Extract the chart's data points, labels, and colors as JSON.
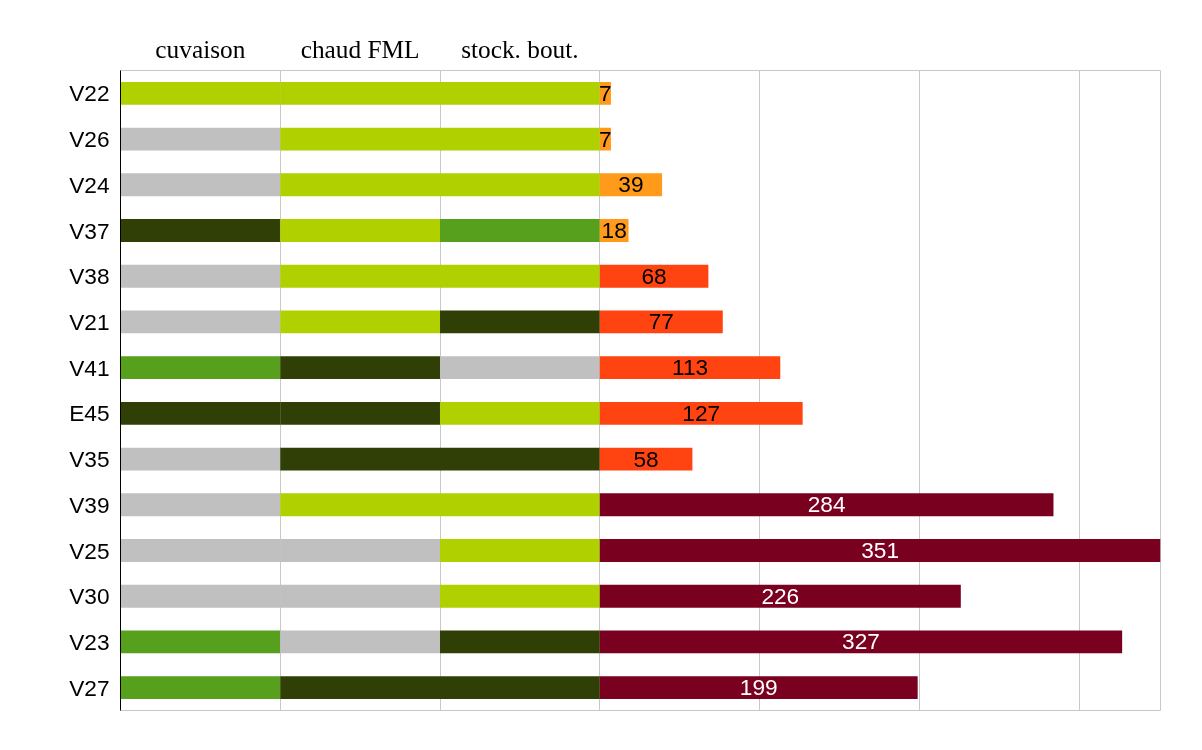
{
  "chart_data": {
    "type": "bar",
    "orientation": "horizontal",
    "stacked": true,
    "categories": [
      "V22",
      "V26",
      "V24",
      "V37",
      "V38",
      "V21",
      "V41",
      "E45",
      "V35",
      "V39",
      "V25",
      "V30",
      "V23",
      "V27"
    ],
    "series": [
      {
        "name": "cuvaison",
        "values": [
          100,
          100,
          100,
          100,
          100,
          100,
          100,
          100,
          100,
          100,
          100,
          100,
          100,
          100
        ],
        "colors": [
          "#b0d000",
          "#c0c0c0",
          "#c0c0c0",
          "#2f3f06",
          "#c0c0c0",
          "#c0c0c0",
          "#56a01e",
          "#2f3f06",
          "#c0c0c0",
          "#c0c0c0",
          "#c0c0c0",
          "#c0c0c0",
          "#56a01e",
          "#56a01e"
        ]
      },
      {
        "name": "chaud FML",
        "values": [
          100,
          100,
          100,
          100,
          100,
          100,
          100,
          100,
          100,
          100,
          100,
          100,
          100,
          100
        ],
        "colors": [
          "#b0d000",
          "#b0d000",
          "#b0d000",
          "#b0d000",
          "#b0d000",
          "#b0d000",
          "#2f3f06",
          "#2f3f06",
          "#2f3f06",
          "#b0d000",
          "#c0c0c0",
          "#c0c0c0",
          "#c0c0c0",
          "#2f3f06"
        ]
      },
      {
        "name": "stock. bout.",
        "values": [
          100,
          100,
          100,
          100,
          100,
          100,
          100,
          100,
          100,
          100,
          100,
          100,
          100,
          100
        ],
        "colors": [
          "#b0d000",
          "#b0d000",
          "#b0d000",
          "#56a01e",
          "#b0d000",
          "#2f3f06",
          "#c0c0c0",
          "#b0d000",
          "#2f3f06",
          "#b0d000",
          "#b0d000",
          "#b0d000",
          "#2f3f06",
          "#2f3f06"
        ]
      },
      {
        "values": [
          7,
          7,
          39,
          18,
          68,
          77,
          113,
          127,
          58,
          284,
          351,
          226,
          327,
          199
        ],
        "colors": [
          "#ff9a1a",
          "#ff9a1a",
          "#ff9a1a",
          "#ff9a1a",
          "#ff4411",
          "#ff4411",
          "#ff4411",
          "#ff4411",
          "#ff4411",
          "#7a0020",
          "#7a0020",
          "#7a0020",
          "#7a0020",
          "#7a0020"
        ],
        "value_labels": [
          "7",
          "7",
          "39",
          "18",
          "68",
          "77",
          "113",
          "127",
          "58",
          "284",
          "351",
          "226",
          "327",
          "199"
        ]
      }
    ],
    "xlim": [
      0,
      651
    ],
    "xticks": [
      {
        "value": 0,
        "label": null
      },
      {
        "value": 100,
        "label": null
      },
      {
        "value": 200,
        "label": null
      },
      {
        "value": 300,
        "label": null
      },
      {
        "value": 400,
        "label": null
      },
      {
        "value": 500,
        "label": null
      },
      {
        "value": 600,
        "label": null
      }
    ],
    "grid": "x",
    "tick_labels": "y"
  }
}
